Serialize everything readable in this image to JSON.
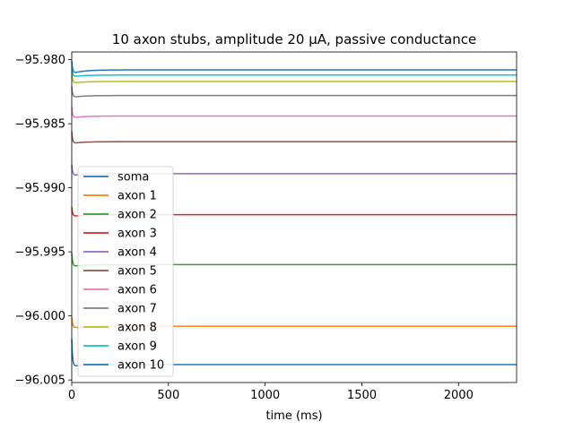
{
  "chart_data": {
    "type": "line",
    "title": "10 axon stubs, amplitude 20 µA, passive conductance",
    "xlabel": "time (ms)",
    "ylabel": "",
    "xlim": [
      0,
      2300
    ],
    "ylim": [
      -96.0052,
      -95.9794
    ],
    "xticks": [
      0,
      500,
      1000,
      1500,
      2000
    ],
    "xtick_labels": [
      "0",
      "500",
      "1000",
      "1500",
      "2000"
    ],
    "yticks": [
      -96.005,
      -96.0,
      -95.995,
      -95.99,
      -95.985,
      -95.98
    ],
    "ytick_labels": [
      "−96.005",
      "−96.000",
      "−95.995",
      "−95.990",
      "−95.985",
      "−95.980"
    ],
    "grid": false,
    "legend_position": "center-left",
    "series": [
      {
        "name": "soma",
        "color": "#1f77b4",
        "start": -95.9801,
        "dip": -95.981,
        "steady": -95.9808
      },
      {
        "name": "axon 1",
        "color": "#ff7f0e",
        "start": -96.0001,
        "dip": -96.0009,
        "steady": -96.0008
      },
      {
        "name": "axon 2",
        "color": "#2ca02c",
        "start": -95.9951,
        "dip": -95.9961,
        "steady": -95.996
      },
      {
        "name": "axon 3",
        "color": "#d62728",
        "start": -95.9915,
        "dip": -95.9922,
        "steady": -95.9921
      },
      {
        "name": "axon 4",
        "color": "#9467bd",
        "start": -95.9882,
        "dip": -95.989,
        "steady": -95.9889
      },
      {
        "name": "axon 5",
        "color": "#8c564b",
        "start": -95.9856,
        "dip": -95.9865,
        "steady": -95.9864
      },
      {
        "name": "axon 6",
        "color": "#e377c2",
        "start": -95.9837,
        "dip": -95.9845,
        "steady": -95.9844
      },
      {
        "name": "axon 7",
        "color": "#7f7f7f",
        "start": -95.9821,
        "dip": -95.9829,
        "steady": -95.9828
      },
      {
        "name": "axon 8",
        "color": "#bcbd22",
        "start": -95.981,
        "dip": -95.9818,
        "steady": -95.9817
      },
      {
        "name": "axon 9",
        "color": "#17becf",
        "start": -95.9805,
        "dip": -95.9813,
        "steady": -95.9812
      },
      {
        "name": "axon 10",
        "color": "#1f77b4",
        "start": -96.0018,
        "dip": -96.0039,
        "steady": -96.0038
      }
    ]
  }
}
